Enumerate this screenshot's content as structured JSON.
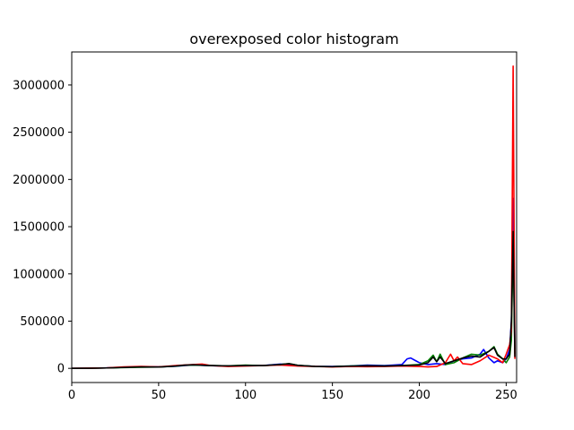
{
  "chart_data": {
    "type": "line",
    "title": "overexposed color histogram",
    "xlabel": "",
    "ylabel": "",
    "xlim": [
      0,
      256
    ],
    "ylim": [
      -150000,
      3350000
    ],
    "xticks": [
      0,
      50,
      100,
      150,
      200,
      250
    ],
    "xtick_labels": [
      "0",
      "50",
      "100",
      "150",
      "200",
      "250"
    ],
    "yticks": [
      0,
      500000,
      1000000,
      1500000,
      2000000,
      2500000,
      3000000
    ],
    "ytick_labels": [
      "0",
      "500000",
      "1000000",
      "1500000",
      "2000000",
      "2500000",
      "3000000"
    ],
    "grid": false,
    "series": [
      {
        "color": "#0000ff",
        "x": [
          0,
          10,
          20,
          30,
          40,
          50,
          60,
          65,
          70,
          80,
          90,
          100,
          110,
          120,
          125,
          130,
          140,
          150,
          160,
          170,
          180,
          185,
          190,
          193,
          195,
          198,
          200,
          205,
          210,
          215,
          220,
          225,
          230,
          235,
          237,
          240,
          243,
          245,
          248,
          250,
          252,
          253,
          254,
          255
        ],
        "y": [
          0,
          2000,
          5000,
          10000,
          18000,
          15000,
          22000,
          30000,
          35000,
          28000,
          25000,
          30000,
          30000,
          45000,
          40000,
          30000,
          22000,
          20000,
          25000,
          35000,
          30000,
          35000,
          40000,
          100000,
          110000,
          80000,
          60000,
          40000,
          50000,
          40000,
          80000,
          100000,
          110000,
          150000,
          200000,
          110000,
          60000,
          80000,
          60000,
          100000,
          200000,
          500000,
          1800000,
          200000
        ]
      },
      {
        "color": "#008000",
        "x": [
          0,
          10,
          20,
          30,
          40,
          50,
          60,
          65,
          70,
          80,
          90,
          100,
          110,
          120,
          125,
          130,
          140,
          150,
          160,
          170,
          180,
          190,
          200,
          205,
          208,
          210,
          212,
          215,
          220,
          225,
          230,
          235,
          240,
          243,
          245,
          248,
          250,
          252,
          253,
          254,
          255
        ],
        "y": [
          0,
          1000,
          4000,
          8000,
          12000,
          14000,
          24000,
          32000,
          36000,
          30000,
          26000,
          35000,
          28000,
          40000,
          50000,
          32000,
          20000,
          18000,
          25000,
          28000,
          25000,
          30000,
          40000,
          80000,
          140000,
          70000,
          150000,
          40000,
          60000,
          110000,
          150000,
          140000,
          180000,
          230000,
          150000,
          100000,
          60000,
          120000,
          300000,
          1400000,
          150000
        ]
      },
      {
        "color": "#ff0000",
        "x": [
          0,
          10,
          20,
          30,
          40,
          50,
          60,
          70,
          75,
          80,
          90,
          100,
          110,
          120,
          125,
          130,
          140,
          150,
          160,
          170,
          180,
          190,
          200,
          205,
          210,
          215,
          218,
          220,
          222,
          225,
          230,
          235,
          240,
          245,
          248,
          250,
          252,
          253,
          254,
          255
        ],
        "y": [
          0,
          2000,
          5000,
          15000,
          20000,
          15000,
          30000,
          40000,
          45000,
          30000,
          20000,
          25000,
          30000,
          35000,
          30000,
          25000,
          20000,
          15000,
          20000,
          18000,
          20000,
          25000,
          20000,
          15000,
          20000,
          60000,
          150000,
          80000,
          120000,
          50000,
          40000,
          80000,
          140000,
          100000,
          60000,
          150000,
          250000,
          400000,
          3200000,
          100000
        ]
      },
      {
        "color": "#000000",
        "x": [
          0,
          10,
          20,
          30,
          40,
          50,
          60,
          65,
          70,
          80,
          90,
          100,
          110,
          120,
          125,
          130,
          140,
          150,
          160,
          170,
          180,
          190,
          200,
          205,
          208,
          210,
          212,
          215,
          220,
          225,
          230,
          235,
          240,
          243,
          245,
          248,
          250,
          252,
          253,
          254,
          255
        ],
        "y": [
          0,
          1500,
          4000,
          10000,
          15000,
          14000,
          25000,
          35000,
          38000,
          30000,
          26000,
          30000,
          30000,
          40000,
          50000,
          32000,
          20000,
          18000,
          23000,
          26000,
          24000,
          30000,
          35000,
          60000,
          120000,
          70000,
          120000,
          50000,
          80000,
          110000,
          130000,
          120000,
          180000,
          220000,
          140000,
          100000,
          100000,
          150000,
          500000,
          1450000,
          120000
        ]
      }
    ]
  }
}
